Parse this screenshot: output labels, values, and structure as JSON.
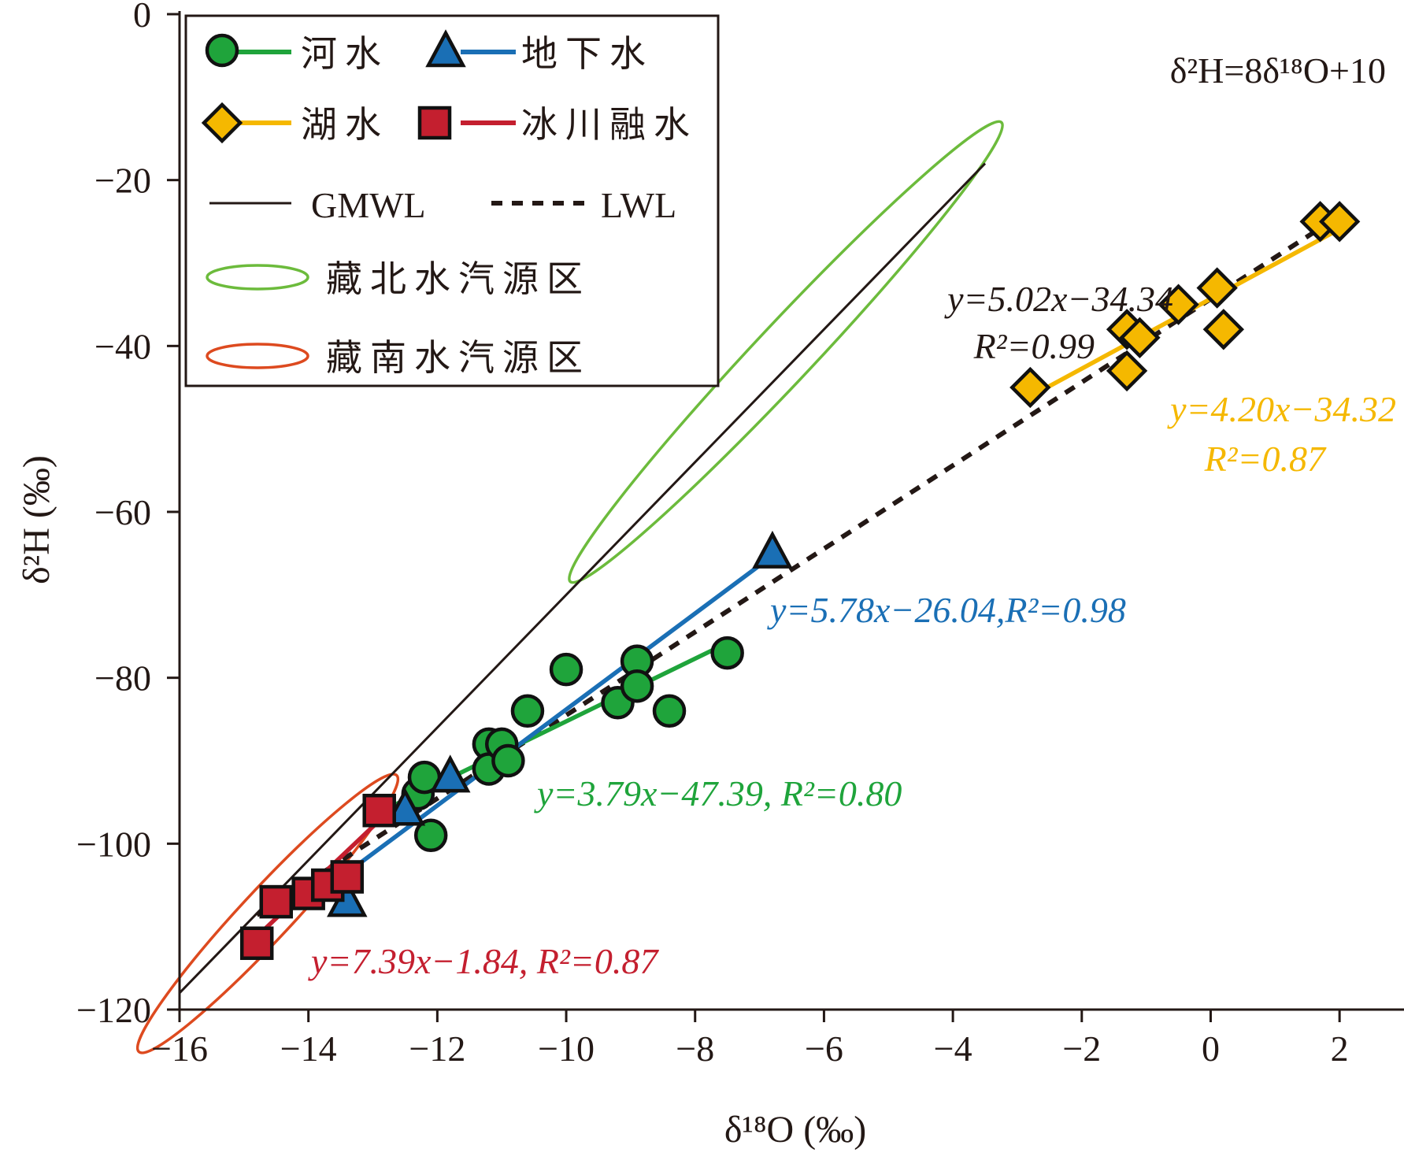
{
  "chart_data": {
    "type": "scatter",
    "xlabel": "δ¹⁸O (‰)",
    "ylabel": "δ²H (‰)",
    "xlim": [
      -16,
      3
    ],
    "ylim": [
      -120,
      0
    ],
    "x_ticks": [
      "−16",
      "−14",
      "−12",
      "−10",
      "−8",
      "−6",
      "−4",
      "−2",
      "0",
      "2"
    ],
    "y_ticks": [
      "0",
      "−20",
      "−40",
      "−60",
      "−80",
      "−100",
      "−120"
    ],
    "colors": {
      "river": "#1fa43b",
      "groundwater": "#1a6fb5",
      "lake": "#f5b800",
      "glacier": "#c41f2f",
      "gmwl": "#231815",
      "lwl": "#231815",
      "north_ellipse": "#6cbb3c",
      "south_ellipse": "#dd4a1f"
    },
    "legend": {
      "river": "河水",
      "groundwater": "地下水",
      "lake": "湖水",
      "glacier": "冰川融水",
      "gmwl": "GMWL",
      "lwl": "LWL",
      "north_source": "藏北水汽源区",
      "south_source": "藏南水汽源区"
    },
    "series": [
      {
        "name": "河水",
        "marker": "circle",
        "points": [
          [
            -12.3,
            -94
          ],
          [
            -12.2,
            -92
          ],
          [
            -12.1,
            -99
          ],
          [
            -11.2,
            -88
          ],
          [
            -11.2,
            -91
          ],
          [
            -11,
            -88
          ],
          [
            -10.9,
            -90
          ],
          [
            -10.6,
            -84
          ],
          [
            -10,
            -79
          ],
          [
            -9.2,
            -83
          ],
          [
            -8.9,
            -78
          ],
          [
            -8.9,
            -81
          ],
          [
            -8.4,
            -84
          ],
          [
            -7.5,
            -77
          ]
        ],
        "fit": {
          "x": [
            -13,
            -7.5
          ],
          "y": [
            -96.6,
            -75.8
          ]
        }
      },
      {
        "name": "地下水",
        "marker": "triangle",
        "points": [
          [
            -13.4,
            -107
          ],
          [
            -12.5,
            -96
          ],
          [
            -11.8,
            -92
          ],
          [
            -6.8,
            -65
          ]
        ],
        "fit": {
          "x": [
            -13.4,
            -6.8
          ],
          "y": [
            -103.5,
            -65.3
          ]
        }
      },
      {
        "name": "湖水",
        "marker": "diamond",
        "points": [
          [
            -2.8,
            -45
          ],
          [
            -1.3,
            -38
          ],
          [
            -1.3,
            -43
          ],
          [
            -1.1,
            -39
          ],
          [
            -0.5,
            -35
          ],
          [
            0.1,
            -33
          ],
          [
            0.2,
            -38
          ],
          [
            1.7,
            -25
          ],
          [
            2,
            -25
          ]
        ],
        "fit": {
          "x": [
            -2.8,
            2
          ],
          "y": [
            -46.1,
            -25.9
          ]
        }
      },
      {
        "name": "冰川融水",
        "marker": "square",
        "points": [
          [
            -14.8,
            -112
          ],
          [
            -14.5,
            -107
          ],
          [
            -14,
            -106
          ],
          [
            -13.7,
            -105
          ],
          [
            -13.4,
            -104
          ],
          [
            -12.9,
            -96
          ]
        ],
        "fit": {
          "x": [
            -14.8,
            -12.9
          ],
          "y": [
            -111.2,
            -97.2
          ]
        }
      }
    ],
    "gmwl": {
      "x": [
        -16,
        -3.5
      ],
      "y": [
        -118,
        -18
      ]
    },
    "lwl": {
      "x": [
        -14.8,
        1.8
      ],
      "y": [
        -108.6,
        -25.3
      ]
    },
    "annotations": {
      "gmwl_eq": "δ²H=8δ¹⁸O+10",
      "lwl_eq": "y=5.02x−34.34",
      "lwl_r2": "R²=0.99",
      "lake_eq": "y=4.20x−34.32",
      "lake_r2": "R²=0.87",
      "groundwater_eq": "y=5.78x−26.04,R²=0.98",
      "river_eq": "y=3.79x−47.39, R²=0.80",
      "glacier_eq": "y=7.39x−1.84, R²=0.87"
    }
  }
}
